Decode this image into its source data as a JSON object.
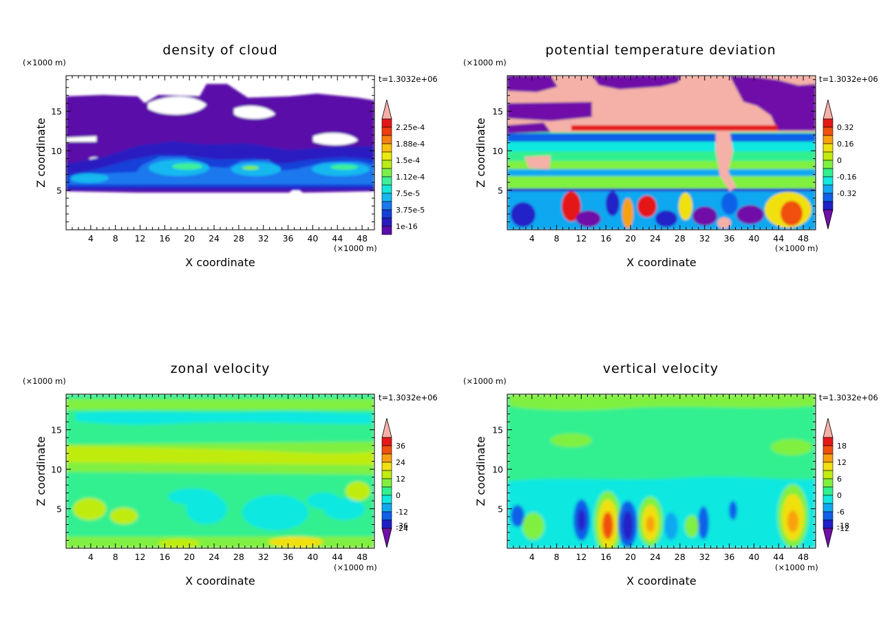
{
  "figure": {
    "panels": [
      {
        "title": "density of cloud",
        "time_label": "t=1.3032e+06",
        "x_unit": "(×1000 m)",
        "z_unit": "(×1000 m)",
        "colorbar_labels": [
          "2.25e-4",
          "1.88e-4",
          "1.5e-4",
          "1.12e-4",
          "7.5e-5",
          "3.75e-5",
          "1e-16"
        ]
      },
      {
        "title": "potential temperature deviation",
        "time_label": "t=1.3032e+06",
        "x_unit": "(×1000 m)",
        "z_unit": "(×1000 m)",
        "colorbar_labels": [
          "0.32",
          "0.16",
          "0",
          "-0.16",
          "-0.32"
        ]
      },
      {
        "title": "zonal velocity",
        "time_label": "t=1.3032e+06",
        "x_unit": "(×1000 m)",
        "z_unit": "(×1000 m)",
        "colorbar_labels": [
          "36",
          "24",
          "12",
          "0",
          "-12",
          "-24",
          "-36"
        ]
      },
      {
        "title": "vertical velocity",
        "time_label": "t=1.3032e+06",
        "x_unit": "(×1000 m)",
        "z_unit": "(×1000 m)",
        "colorbar_labels": [
          "18",
          "12",
          "6",
          "0",
          "-6",
          "-12",
          "-18"
        ]
      }
    ]
  },
  "chart_data": [
    {
      "type": "heatmap",
      "title": "density of cloud",
      "xlabel": "X coordinate",
      "ylabel": "Z coordinate",
      "x_ticks": [
        4,
        8,
        12,
        16,
        20,
        24,
        28,
        32,
        36,
        40,
        44,
        48
      ],
      "y_ticks": [
        5,
        10,
        15
      ],
      "xlim": [
        0,
        50
      ],
      "ylim": [
        0,
        19.5
      ],
      "colorbar": {
        "ticks": [
          "1e-16",
          "3.75e-5",
          "7.5e-5",
          "1.12e-4",
          "1.5e-4",
          "1.88e-4",
          "2.25e-4"
        ],
        "colors": [
          "#5a0da8",
          "#2a1cc0",
          "#1640d8",
          "#1a78ee",
          "#17b8f0",
          "#15e6d8",
          "#3df098",
          "#7cf04a",
          "#b8ec16",
          "#eaea10",
          "#f8c010",
          "#f88010",
          "#f03c10",
          "#e41818",
          "#f5b0a8"
        ],
        "extend": "max"
      },
      "features": [
        {
          "band_z": [
            5,
            17
          ],
          "value": "low"
        },
        {
          "band_z": [
            5,
            8.5
          ],
          "value": "high",
          "peaks_x": [
            6,
            18,
            30,
            46
          ]
        }
      ]
    },
    {
      "type": "heatmap",
      "title": "potential temperature deviation",
      "xlabel": "X coordinate",
      "ylabel": "Z coordinate",
      "x_ticks": [
        4,
        8,
        12,
        16,
        20,
        24,
        28,
        32,
        36,
        40,
        44,
        48
      ],
      "y_ticks": [
        5,
        10,
        15
      ],
      "xlim": [
        0,
        50
      ],
      "ylim": [
        0,
        19.5
      ],
      "colorbar": {
        "ticks": [
          "-0.32",
          "-0.16",
          "0",
          "0.16",
          "0.32"
        ],
        "colors": [
          "#7010a8",
          "#2020c8",
          "#1060e8",
          "#10a8f0",
          "#10e8e0",
          "#30f090",
          "#80f040",
          "#c0ec10",
          "#f0e010",
          "#f8a010",
          "#f05010",
          "#e41818",
          "#f5b0a8"
        ],
        "extend": "both"
      },
      "features": [
        {
          "band_z": [
            13,
            19.5
          ],
          "value": "mixed high/low"
        },
        {
          "band_z": [
            5.5,
            12
          ],
          "value": "near zero, layered"
        },
        {
          "band_z": [
            0,
            5.5
          ],
          "value": "strong fluctuations"
        }
      ]
    },
    {
      "type": "heatmap",
      "title": "zonal velocity",
      "xlabel": "X coordinate",
      "ylabel": "Z coordinate",
      "x_ticks": [
        4,
        8,
        12,
        16,
        20,
        24,
        28,
        32,
        36,
        40,
        44,
        48
      ],
      "y_ticks": [
        5,
        10,
        15
      ],
      "xlim": [
        0,
        50
      ],
      "ylim": [
        0,
        19.5
      ],
      "colorbar": {
        "ticks": [
          "-36",
          "-24",
          "-12",
          "0",
          "12",
          "24",
          "36"
        ],
        "colors": [
          "#7010a8",
          "#2020c8",
          "#1060e8",
          "#10a8f0",
          "#10e8e0",
          "#30f090",
          "#80f040",
          "#c0ec10",
          "#f0e010",
          "#f8a010",
          "#f05010",
          "#e41818",
          "#f5b0a8"
        ],
        "extend": "both"
      },
      "features": [
        {
          "band_z": [
            10,
            14
          ],
          "value": "positive (~6)"
        },
        {
          "band_z": [
            0,
            9
          ],
          "value": "near zero with weak negative patches"
        }
      ]
    },
    {
      "type": "heatmap",
      "title": "vertical velocity",
      "xlabel": "X coordinate",
      "ylabel": "Z coordinate",
      "x_ticks": [
        4,
        8,
        12,
        16,
        20,
        24,
        28,
        32,
        36,
        40,
        44,
        48
      ],
      "y_ticks": [
        5,
        10,
        15
      ],
      "xlim": [
        0,
        50
      ],
      "ylim": [
        0,
        19.5
      ],
      "colorbar": {
        "ticks": [
          "-18",
          "-12",
          "-6",
          "0",
          "6",
          "12",
          "18"
        ],
        "colors": [
          "#7010a8",
          "#2020c8",
          "#1060e8",
          "#10a8f0",
          "#10e8e0",
          "#30f090",
          "#80f040",
          "#c0ec10",
          "#f0e010",
          "#f8a010",
          "#f05010",
          "#e41818",
          "#f5b0a8"
        ],
        "extend": "both"
      },
      "features": [
        {
          "band_z": [
            8,
            19.5
          ],
          "value": "near zero"
        },
        {
          "band_z": [
            0,
            8
          ],
          "value": "alternating up/down cells",
          "updraft_x": [
            16.5,
            23.5,
            47
          ],
          "downdraft_x": [
            12,
            19.5,
            31.5
          ]
        }
      ]
    }
  ]
}
